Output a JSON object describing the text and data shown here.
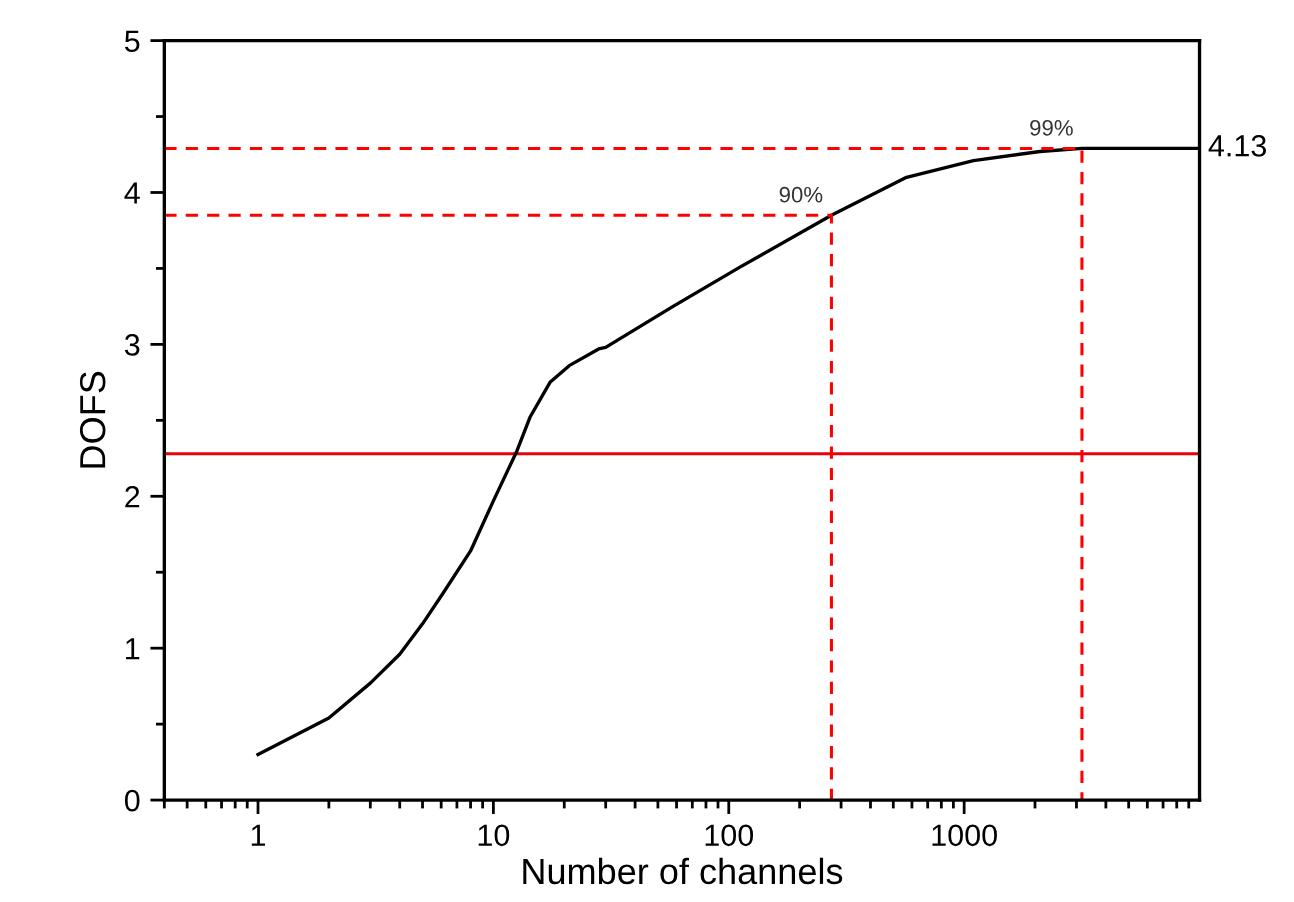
{
  "chart_data": {
    "type": "line",
    "xlabel": "Number of channels",
    "ylabel": "DOFS",
    "log": "x",
    "xlim": [
      0.4,
      10000
    ],
    "xticks": [
      1,
      10,
      100,
      1000
    ],
    "ylim": [
      0,
      5
    ],
    "yticks": [
      0,
      1,
      2,
      3,
      4,
      5
    ],
    "grid": false,
    "legend": false,
    "marker": "none",
    "line_style": "solid",
    "series": [
      {
        "color": "#000000",
        "x": [
          1,
          2,
          3,
          4,
          5,
          6.1,
          8,
          10,
          12.6,
          14.3,
          17.4,
          21,
          28,
          30,
          58,
          112,
          273,
          569,
          1095,
          2100,
          3165,
          10000
        ],
        "values": [
          0.3,
          0.54,
          0.77,
          0.96,
          1.16,
          1.36,
          1.64,
          1.97,
          2.3,
          2.52,
          2.75,
          2.86,
          2.97,
          2.98,
          3.25,
          3.51,
          3.85,
          4.1,
          4.21,
          4.27,
          4.29,
          4.29
        ]
      },
      {
        "color": "#ff0000",
        "line_style": "dashed",
        "x": [
          0.4,
          273,
          273
        ],
        "values": [
          3.85,
          3.85,
          0
        ]
      },
      {
        "color": "#ff0000",
        "line_style": "dashed",
        "x": [
          0.4,
          3165,
          3165
        ],
        "values": [
          4.29,
          4.29,
          0
        ]
      }
    ],
    "ref_lines": [
      {
        "axis": "y",
        "value": 2.28,
        "color": "#e8000b"
      }
    ],
    "annotations": [
      {
        "text": "90%",
        "x": 273,
        "y": 3.85
      },
      {
        "text": "99%",
        "x": 3165,
        "y": 4.29
      },
      {
        "text": "4.13",
        "x": 10000,
        "y": 4.29
      }
    ]
  }
}
